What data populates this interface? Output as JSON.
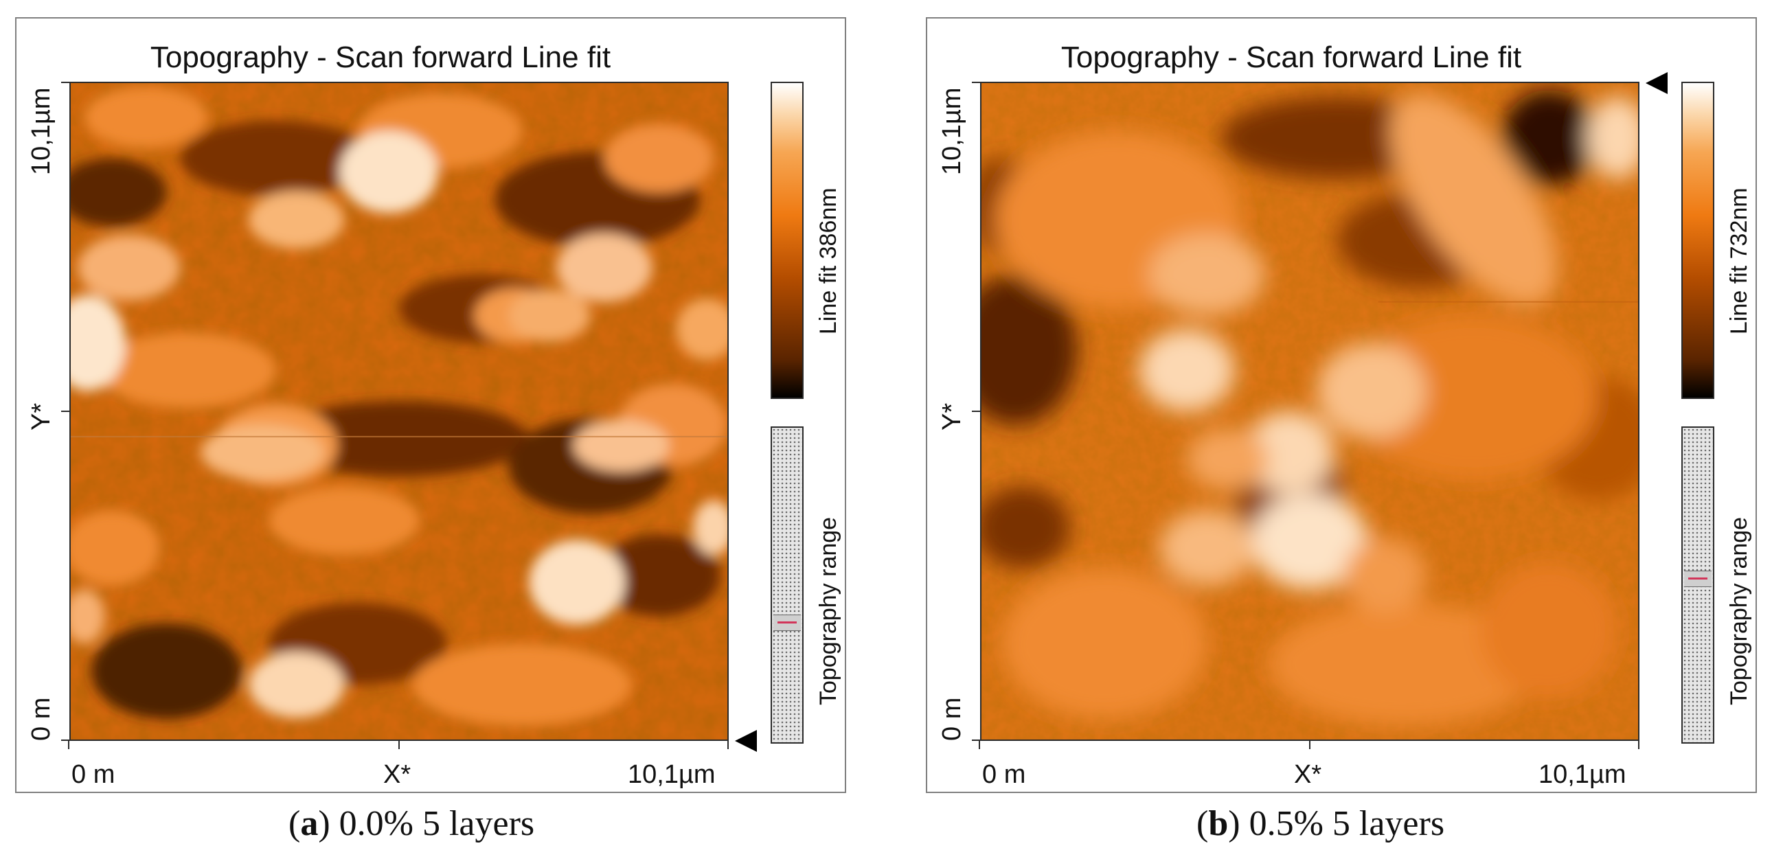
{
  "panel_a": {
    "title": "Topography - Scan forward   Line fit",
    "y_top": "10,1µm",
    "y_mid": "Y*",
    "y_bottom": "0 m",
    "x_left": "0 m",
    "x_mid": "X*",
    "x_right": "10,1µm",
    "colorbar_label": "Line fit 386nm",
    "range_label": "Topography range",
    "range_slider_position": 0.62,
    "caption_letter": "a",
    "caption_text": "0.0% 5 layers"
  },
  "panel_b": {
    "title": "Topography - Scan forward   Line fit",
    "y_top": "10,1µm",
    "y_mid": "Y*",
    "y_bottom": "0 m",
    "x_left": "0 m",
    "x_mid": "X*",
    "x_right": "10,1µm",
    "colorbar_label": "Line fit 732nm",
    "range_label": "Topography range",
    "range_slider_position": 0.48,
    "caption_letter": "b",
    "caption_text": "0.5% 5 layers"
  },
  "colors": {
    "dark": "#000000",
    "mid": "#e8761a",
    "light": "#ffffff"
  }
}
